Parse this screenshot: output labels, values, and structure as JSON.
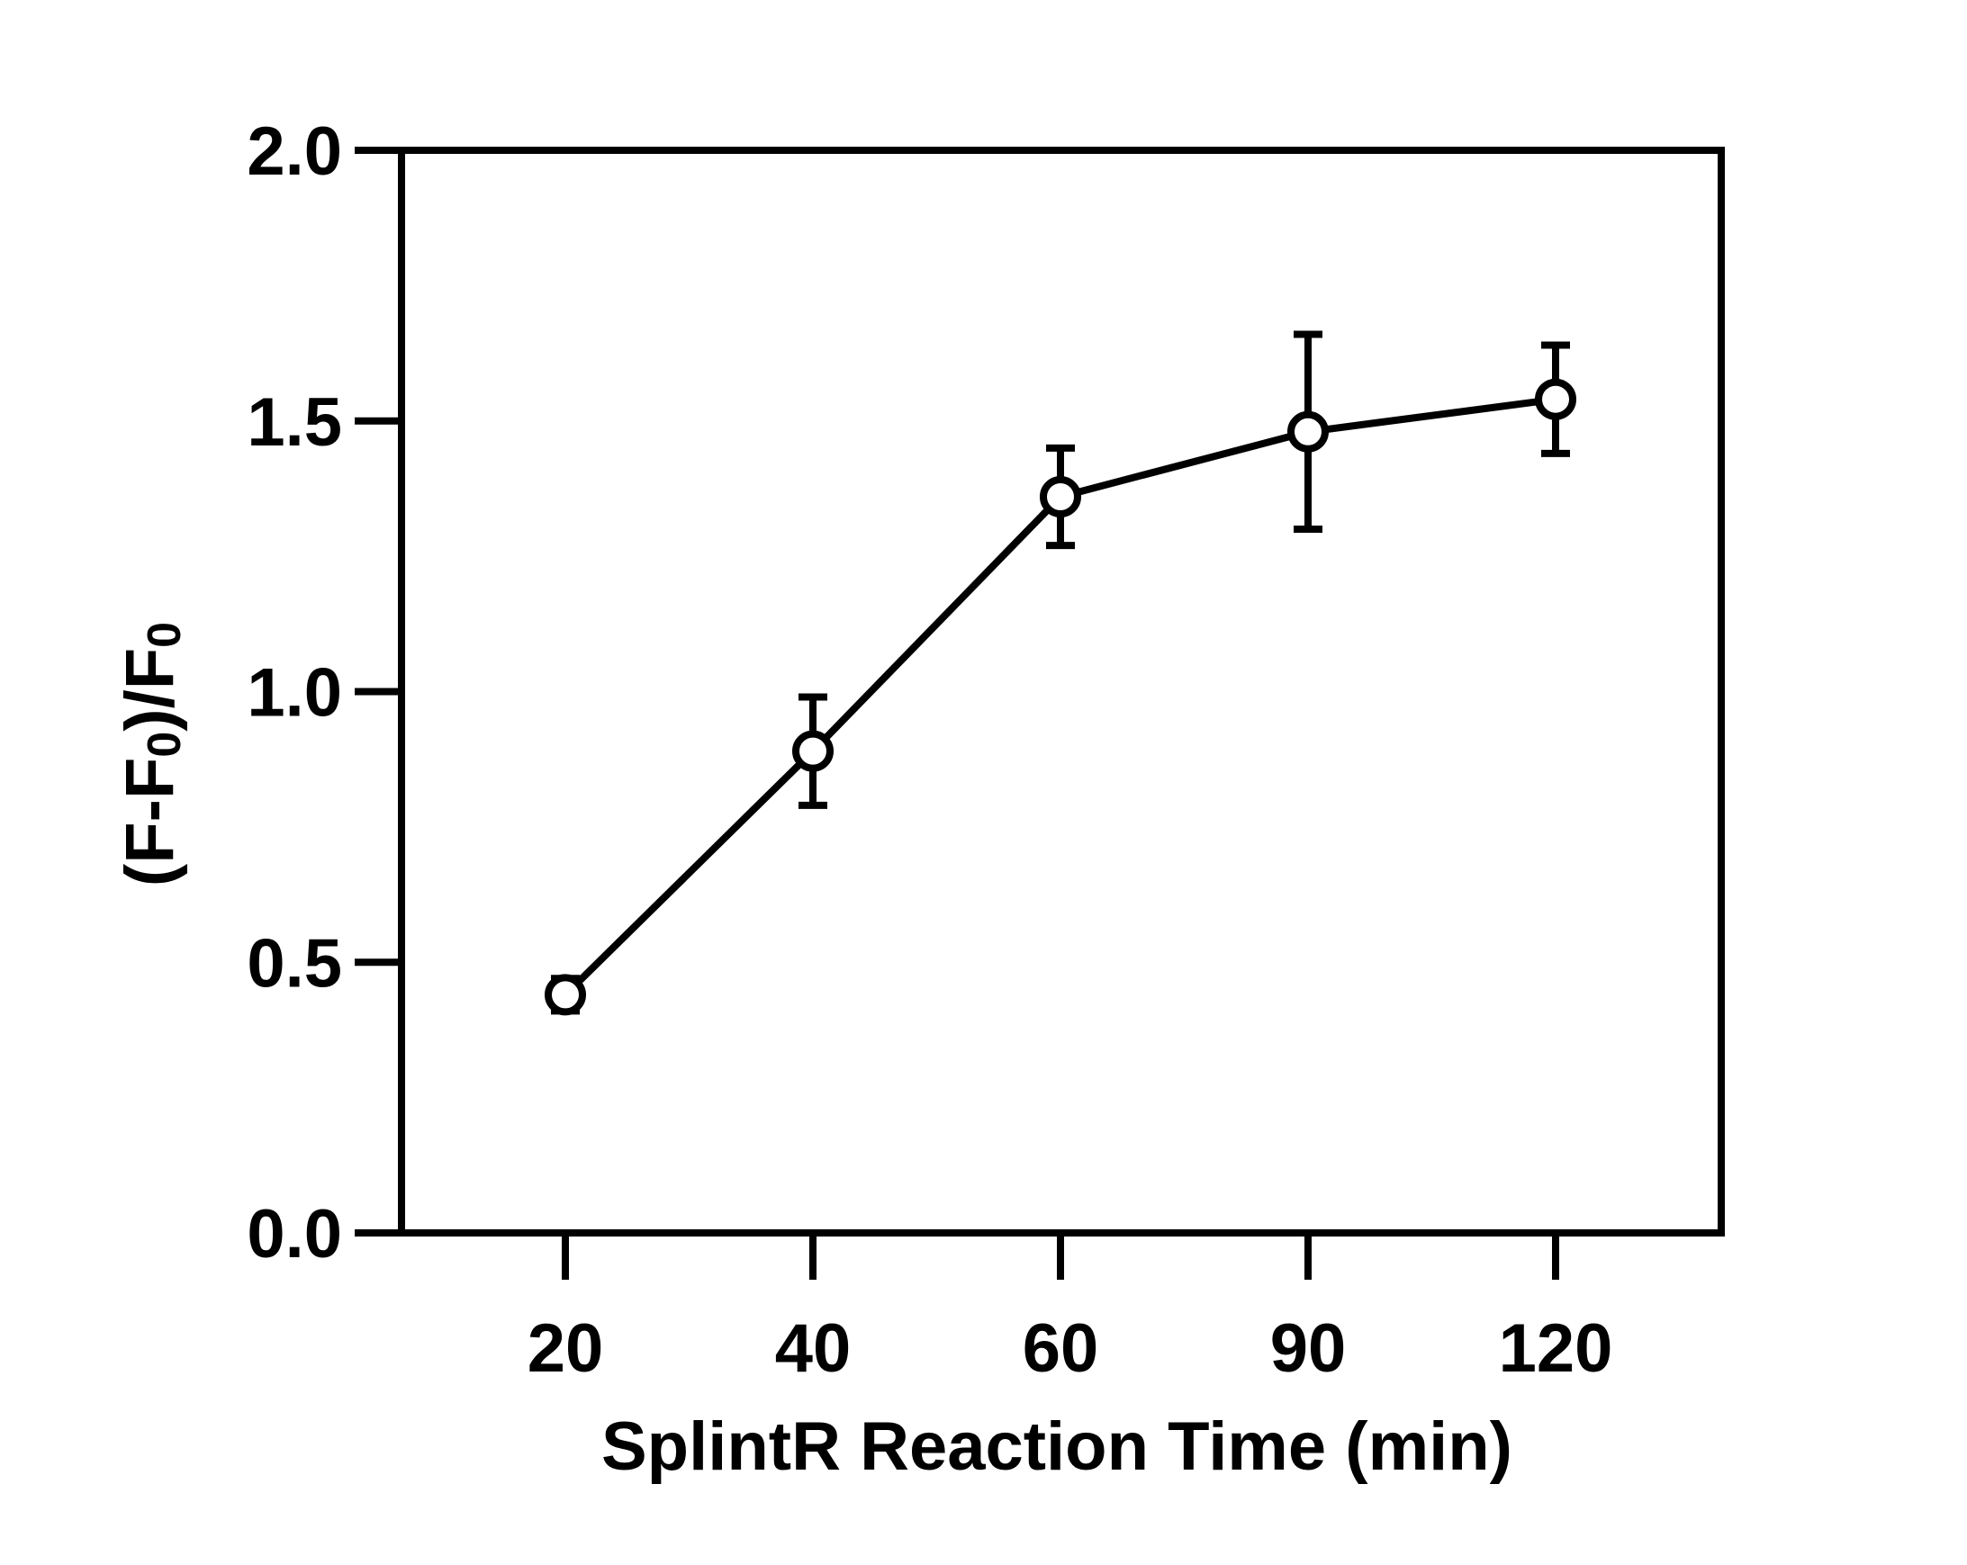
{
  "chart_data": {
    "type": "line",
    "categories": [
      "20",
      "40",
      "60",
      "90",
      "120"
    ],
    "series": [
      {
        "values": [
          0.44,
          0.89,
          1.36,
          1.48,
          1.54
        ],
        "error": [
          0.03,
          0.1,
          0.09,
          0.18,
          0.1
        ],
        "marker": "open-circle"
      }
    ],
    "xlabel": "SplintR Reaction Time (min)",
    "ylabel": {
      "parts": [
        {
          "text": "(F-F",
          "sub": false
        },
        {
          "text": "0",
          "sub": true
        },
        {
          "text": ")/F",
          "sub": false
        },
        {
          "text": "0",
          "sub": true
        }
      ]
    },
    "ylim": [
      0,
      2.0
    ],
    "yticks": [
      "0.0",
      "0.5",
      "1.0",
      "1.5",
      "2.0"
    ],
    "grid": false,
    "legend": "none",
    "colors": {
      "line": "#000000",
      "background": "#ffffff"
    }
  }
}
